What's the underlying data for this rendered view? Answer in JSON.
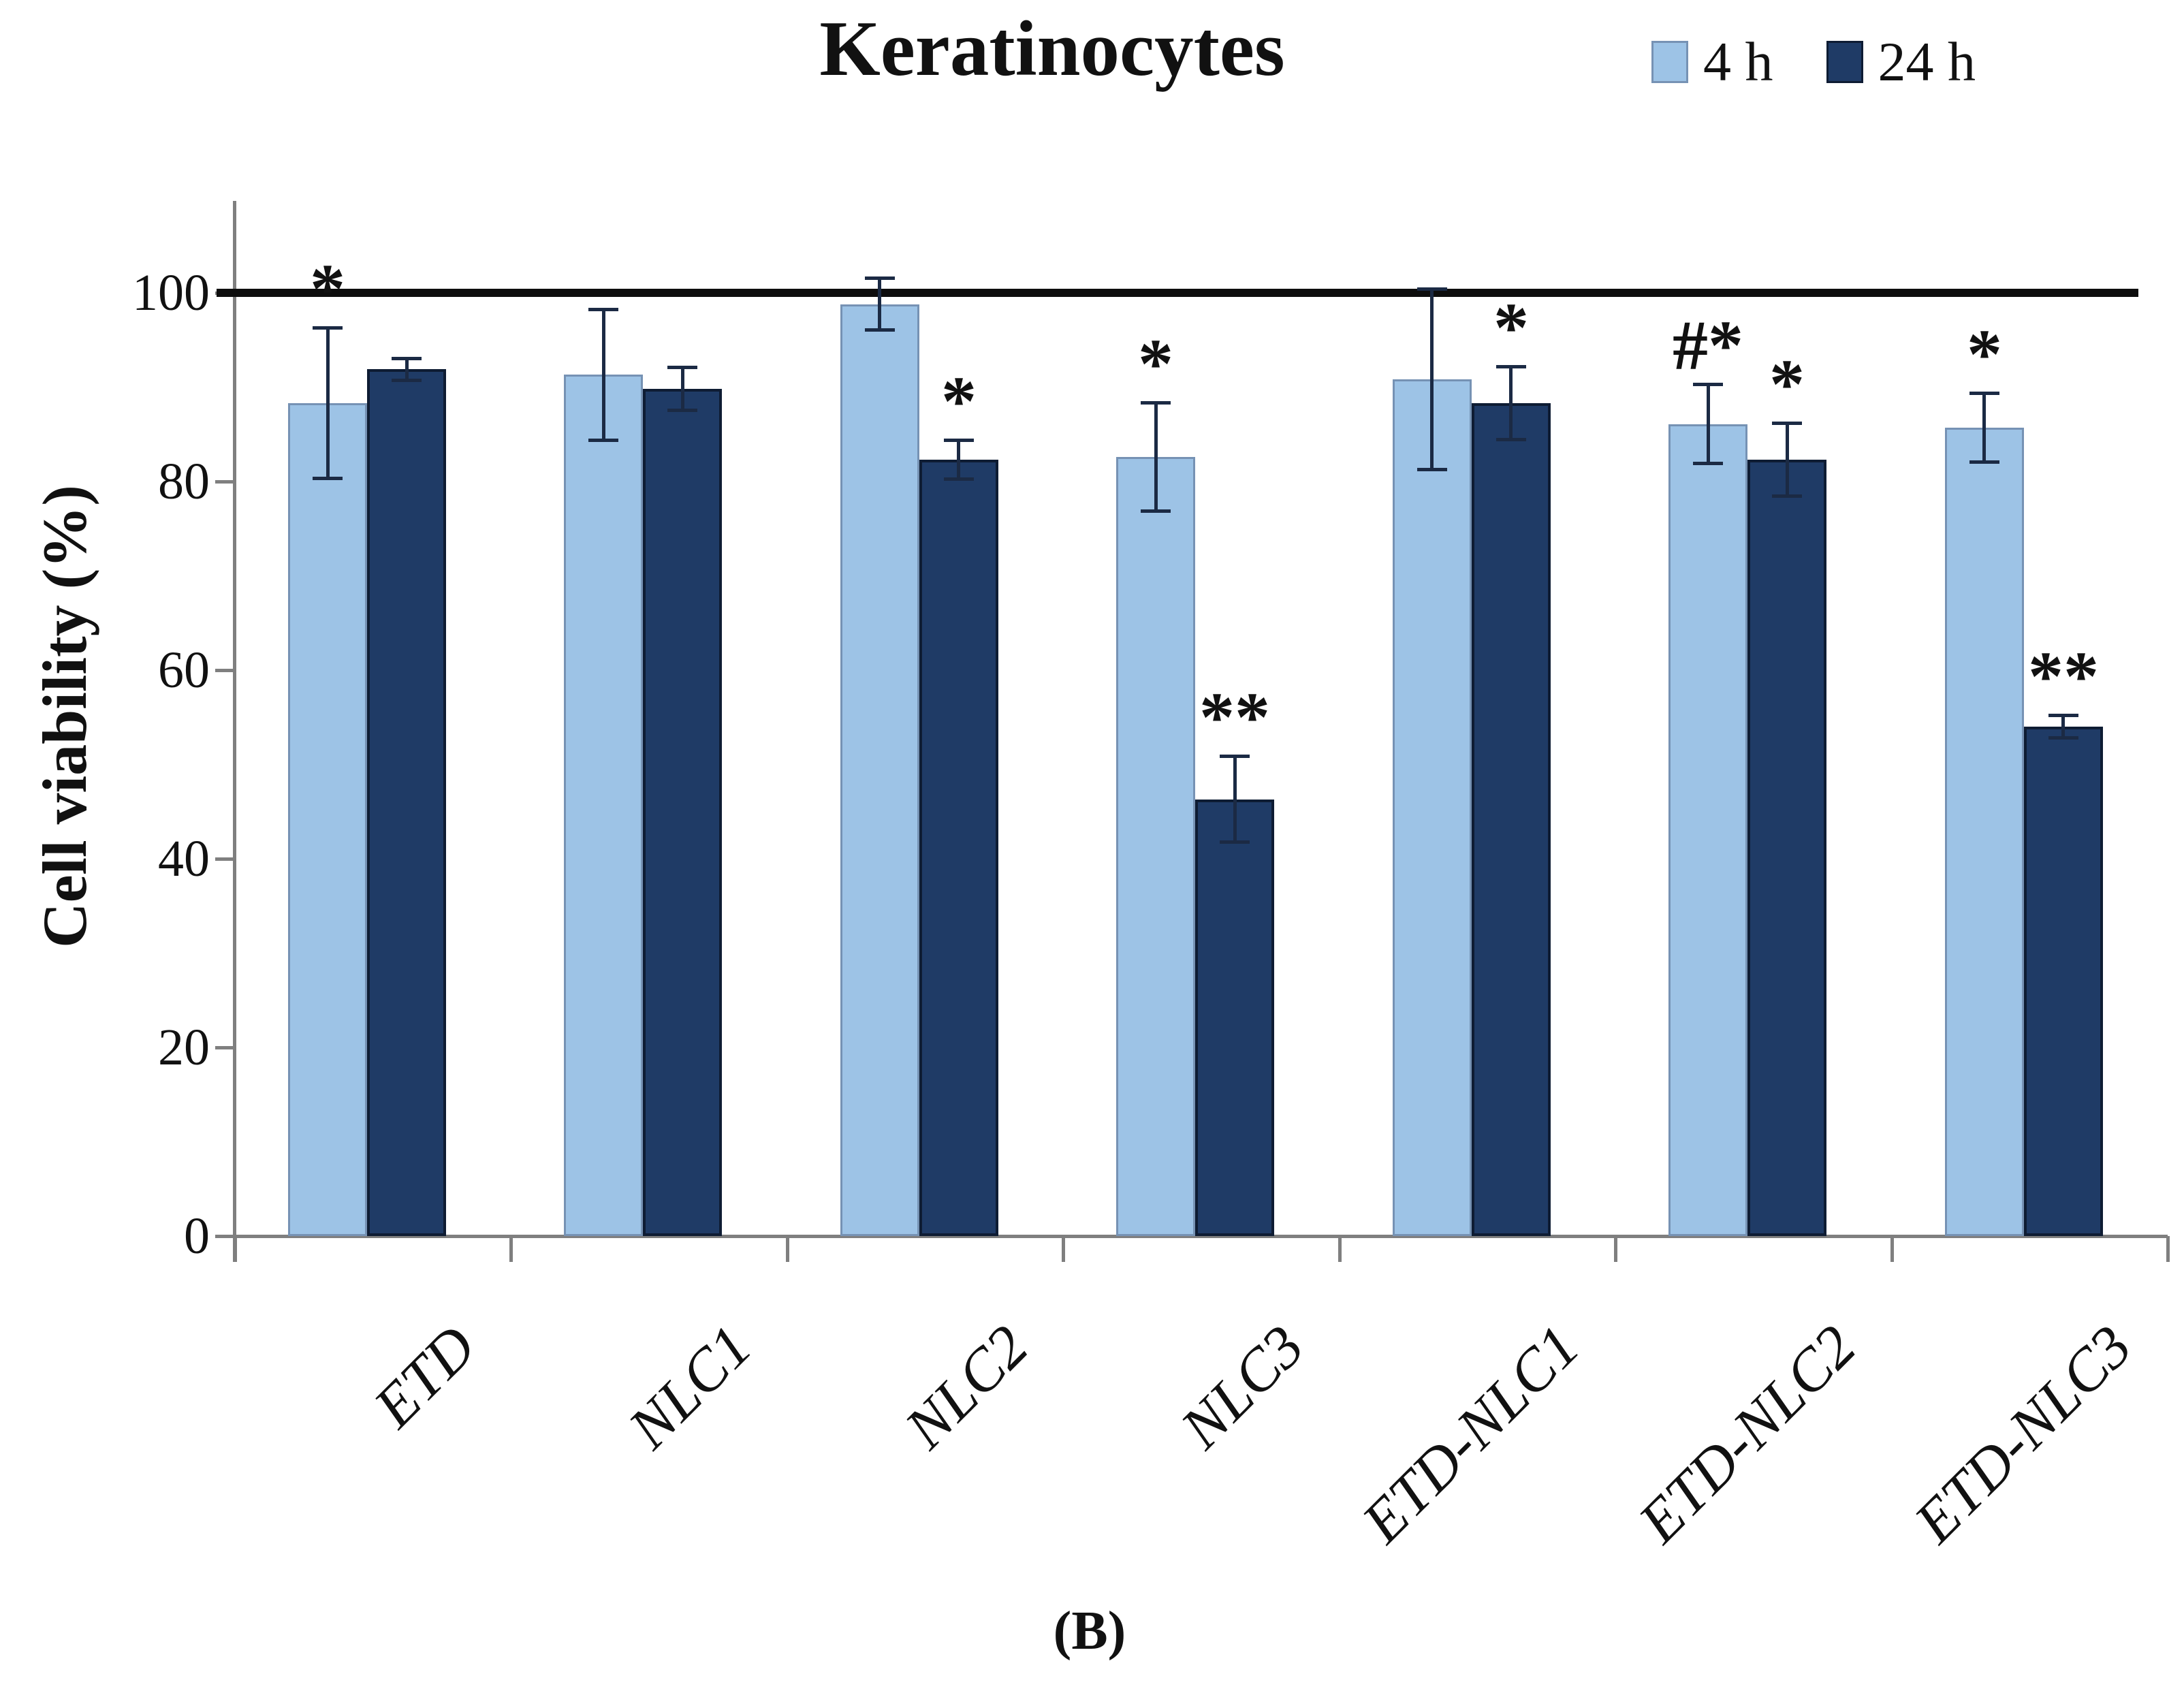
{
  "title": "Keratinocytes",
  "panel_label": "(B)",
  "legend": {
    "items": [
      {
        "label": "4 h"
      },
      {
        "label": "24 h"
      }
    ]
  },
  "chart_data": {
    "type": "bar",
    "title": "Keratinocytes",
    "categories": [
      "ETD",
      "NLC1",
      "NLC2",
      "NLC3",
      "ETD-NLC1",
      "ETD-NLC2",
      "ETD-NLC3"
    ],
    "series": [
      {
        "name": "4 h",
        "fill": "#9DC3E6",
        "border": "#7692B4",
        "values": [
          88.3,
          91.3,
          98.8,
          82.6,
          90.8,
          86.1,
          85.7
        ],
        "errors": [
          8.0,
          7.0,
          2.8,
          5.8,
          9.6,
          4.2,
          3.7
        ],
        "significance": [
          "*",
          "",
          "",
          "*",
          "",
          "#*",
          "*"
        ]
      },
      {
        "name": "24 h",
        "fill": "#1F3B66",
        "border": "#0E1C33",
        "values": [
          91.9,
          89.8,
          82.3,
          46.3,
          88.3,
          82.3,
          54.0
        ],
        "errors": [
          1.2,
          2.3,
          2.1,
          4.6,
          3.9,
          3.9,
          1.2
        ],
        "significance": [
          "",
          "",
          "*",
          "**",
          "*",
          "*",
          "**"
        ]
      }
    ],
    "ylabel": "Cell viability (%)",
    "xlabel": "",
    "ylim": [
      0,
      108
    ],
    "y_ticks": [
      0,
      20,
      40,
      60,
      80,
      100
    ],
    "reference_line": 100,
    "grid": false,
    "legend_position": "top-right",
    "error_bar_color": "#1B2A44",
    "axis_color": "#7F7F7F",
    "reference_line_color": "#0D0D0D"
  }
}
